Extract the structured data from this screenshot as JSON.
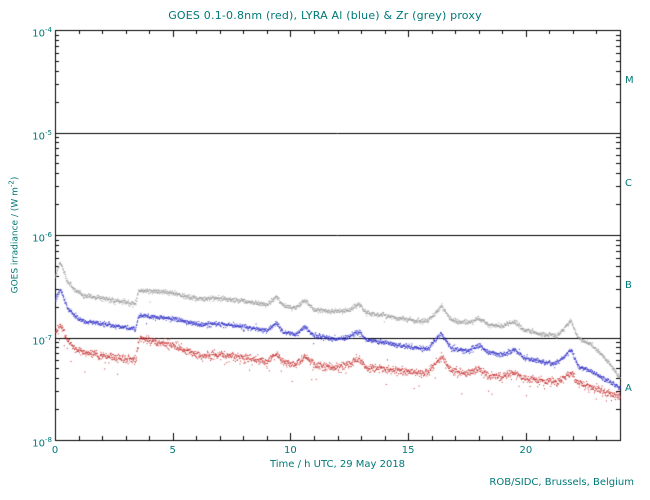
{
  "colors": {
    "text": "#007878",
    "frame": "#000000",
    "background": "#ffffff"
  },
  "footer": "ROB/SIDC, Brussels, Belgium",
  "chart_data": {
    "type": "scatter",
    "title": "GOES 0.1-0.8nm (red), LYRA Al (blue) & Zr (grey) proxy",
    "xlabel": "Time / h UTC, 29 May 2018",
    "ylabel_parts": {
      "pre": "GOES irradiance / (W m",
      "sup": "-2",
      "post": ")"
    },
    "xlim": [
      0,
      24
    ],
    "ylog10": [
      -8,
      -4
    ],
    "x_major_ticks": [
      0,
      5,
      10,
      15,
      20
    ],
    "x_minor_step": 1,
    "y_tick_exponents": [
      -4,
      -5,
      -6,
      -7,
      -8
    ],
    "hlines": [
      1e-07,
      1e-06,
      1e-05
    ],
    "grid": false,
    "legend_position": "in-title",
    "flare_classes": [
      {
        "label": "M",
        "log10_center": -4.5
      },
      {
        "label": "C",
        "log10_center": -5.5
      },
      {
        "label": "B",
        "log10_center": -6.5
      },
      {
        "label": "A",
        "log10_center": -7.5
      }
    ],
    "series": [
      {
        "name": "LYRA Zr proxy",
        "color": "#9e9e9e",
        "scatter_log10": 0.012,
        "outlier_fraction": 0.004,
        "points": [
          [
            0,
            4e-07
          ],
          [
            0.2,
            5.5e-07
          ],
          [
            0.35,
            4.5e-07
          ],
          [
            0.5,
            3.6e-07
          ],
          [
            0.8,
            3e-07
          ],
          [
            1.2,
            2.6e-07
          ],
          [
            1.7,
            2.5e-07
          ],
          [
            2.2,
            2.4e-07
          ],
          [
            2.8,
            2.25e-07
          ],
          [
            3.4,
            2.15e-07
          ],
          [
            3.55,
            2.9e-07
          ],
          [
            4.2,
            2.85e-07
          ],
          [
            5.0,
            2.75e-07
          ],
          [
            5.6,
            2.5e-07
          ],
          [
            6.2,
            2.4e-07
          ],
          [
            7.0,
            2.45e-07
          ],
          [
            7.6,
            2.35e-07
          ],
          [
            8.2,
            2.25e-07
          ],
          [
            9.0,
            2.1e-07
          ],
          [
            9.4,
            2.55e-07
          ],
          [
            9.7,
            2.05e-07
          ],
          [
            10.2,
            1.95e-07
          ],
          [
            10.6,
            2.35e-07
          ],
          [
            11.0,
            1.9e-07
          ],
          [
            11.8,
            1.8e-07
          ],
          [
            12.4,
            1.85e-07
          ],
          [
            12.9,
            2.15e-07
          ],
          [
            13.2,
            1.75e-07
          ],
          [
            14.0,
            1.65e-07
          ],
          [
            15.0,
            1.5e-07
          ],
          [
            15.8,
            1.45e-07
          ],
          [
            16.4,
            2.05e-07
          ],
          [
            16.8,
            1.5e-07
          ],
          [
            17.5,
            1.4e-07
          ],
          [
            18.0,
            1.55e-07
          ],
          [
            18.4,
            1.35e-07
          ],
          [
            19.0,
            1.3e-07
          ],
          [
            19.5,
            1.45e-07
          ],
          [
            19.9,
            1.2e-07
          ],
          [
            20.6,
            1.1e-07
          ],
          [
            21.3,
            1.05e-07
          ],
          [
            21.9,
            1.45e-07
          ],
          [
            22.2,
            1e-07
          ],
          [
            22.8,
            8.5e-08
          ],
          [
            23.3,
            6.5e-08
          ],
          [
            23.7,
            5e-08
          ],
          [
            24,
            4e-08
          ]
        ]
      },
      {
        "name": "LYRA Al proxy",
        "color": "#3232c8",
        "scatter_log10": 0.012,
        "outlier_fraction": 0.004,
        "points": [
          [
            0,
            2.3e-07
          ],
          [
            0.2,
            3e-07
          ],
          [
            0.35,
            2.5e-07
          ],
          [
            0.5,
            2e-07
          ],
          [
            0.8,
            1.65e-07
          ],
          [
            1.2,
            1.45e-07
          ],
          [
            1.7,
            1.4e-07
          ],
          [
            2.2,
            1.35e-07
          ],
          [
            2.8,
            1.28e-07
          ],
          [
            3.4,
            1.22e-07
          ],
          [
            3.55,
            1.65e-07
          ],
          [
            4.2,
            1.6e-07
          ],
          [
            5.0,
            1.55e-07
          ],
          [
            5.6,
            1.42e-07
          ],
          [
            6.2,
            1.35e-07
          ],
          [
            7.0,
            1.38e-07
          ],
          [
            7.6,
            1.32e-07
          ],
          [
            8.2,
            1.26e-07
          ],
          [
            9.0,
            1.18e-07
          ],
          [
            9.4,
            1.4e-07
          ],
          [
            9.7,
            1.12e-07
          ],
          [
            10.2,
            1.08e-07
          ],
          [
            10.6,
            1.28e-07
          ],
          [
            11.0,
            1.04e-07
          ],
          [
            11.8,
            9.8e-08
          ],
          [
            12.4,
            1e-07
          ],
          [
            12.9,
            1.15e-07
          ],
          [
            13.2,
            9.5e-08
          ],
          [
            14.0,
            9e-08
          ],
          [
            15.0,
            8.2e-08
          ],
          [
            15.8,
            7.8e-08
          ],
          [
            16.4,
            1.1e-07
          ],
          [
            16.8,
            8e-08
          ],
          [
            17.5,
            7.5e-08
          ],
          [
            18.0,
            8.3e-08
          ],
          [
            18.4,
            7.2e-08
          ],
          [
            19.0,
            6.9e-08
          ],
          [
            19.5,
            7.7e-08
          ],
          [
            19.9,
            6.4e-08
          ],
          [
            20.6,
            5.9e-08
          ],
          [
            21.3,
            5.6e-08
          ],
          [
            21.9,
            7.6e-08
          ],
          [
            22.2,
            5.3e-08
          ],
          [
            22.8,
            4.7e-08
          ],
          [
            23.3,
            4e-08
          ],
          [
            23.7,
            3.6e-08
          ],
          [
            24,
            3.2e-08
          ]
        ]
      },
      {
        "name": "GOES 0.1-0.8nm",
        "color": "#c83232",
        "scatter_log10": 0.02,
        "outlier_fraction": 0.02,
        "points": [
          [
            0,
            1.1e-07
          ],
          [
            0.2,
            1.35e-07
          ],
          [
            0.35,
            1.15e-07
          ],
          [
            0.5,
            9.5e-08
          ],
          [
            0.8,
            8e-08
          ],
          [
            1.2,
            7.2e-08
          ],
          [
            1.7,
            6.9e-08
          ],
          [
            2.2,
            6.6e-08
          ],
          [
            2.8,
            6.3e-08
          ],
          [
            3.4,
            6.1e-08
          ],
          [
            3.55,
            9.8e-08
          ],
          [
            4.2,
            9.2e-08
          ],
          [
            5.0,
            8.4e-08
          ],
          [
            5.6,
            7.4e-08
          ],
          [
            6.2,
            6.7e-08
          ],
          [
            7.0,
            6.9e-08
          ],
          [
            7.6,
            6.6e-08
          ],
          [
            8.2,
            6.3e-08
          ],
          [
            9.0,
            5.9e-08
          ],
          [
            9.4,
            7e-08
          ],
          [
            9.7,
            5.7e-08
          ],
          [
            10.2,
            5.5e-08
          ],
          [
            10.6,
            6.6e-08
          ],
          [
            11.0,
            5.4e-08
          ],
          [
            11.8,
            5.2e-08
          ],
          [
            12.4,
            5.4e-08
          ],
          [
            12.9,
            6.3e-08
          ],
          [
            13.2,
            5.1e-08
          ],
          [
            14.0,
            5e-08
          ],
          [
            15.0,
            4.7e-08
          ],
          [
            15.8,
            4.5e-08
          ],
          [
            16.4,
            6.7e-08
          ],
          [
            16.8,
            4.8e-08
          ],
          [
            17.5,
            4.5e-08
          ],
          [
            18.0,
            5e-08
          ],
          [
            18.4,
            4.3e-08
          ],
          [
            19.0,
            4.2e-08
          ],
          [
            19.5,
            4.7e-08
          ],
          [
            19.9,
            4e-08
          ],
          [
            20.6,
            3.8e-08
          ],
          [
            21.3,
            3.7e-08
          ],
          [
            21.9,
            4.6e-08
          ],
          [
            22.2,
            3.6e-08
          ],
          [
            22.8,
            3.3e-08
          ],
          [
            23.3,
            3e-08
          ],
          [
            23.7,
            2.8e-08
          ],
          [
            24,
            2.7e-08
          ]
        ]
      }
    ]
  }
}
